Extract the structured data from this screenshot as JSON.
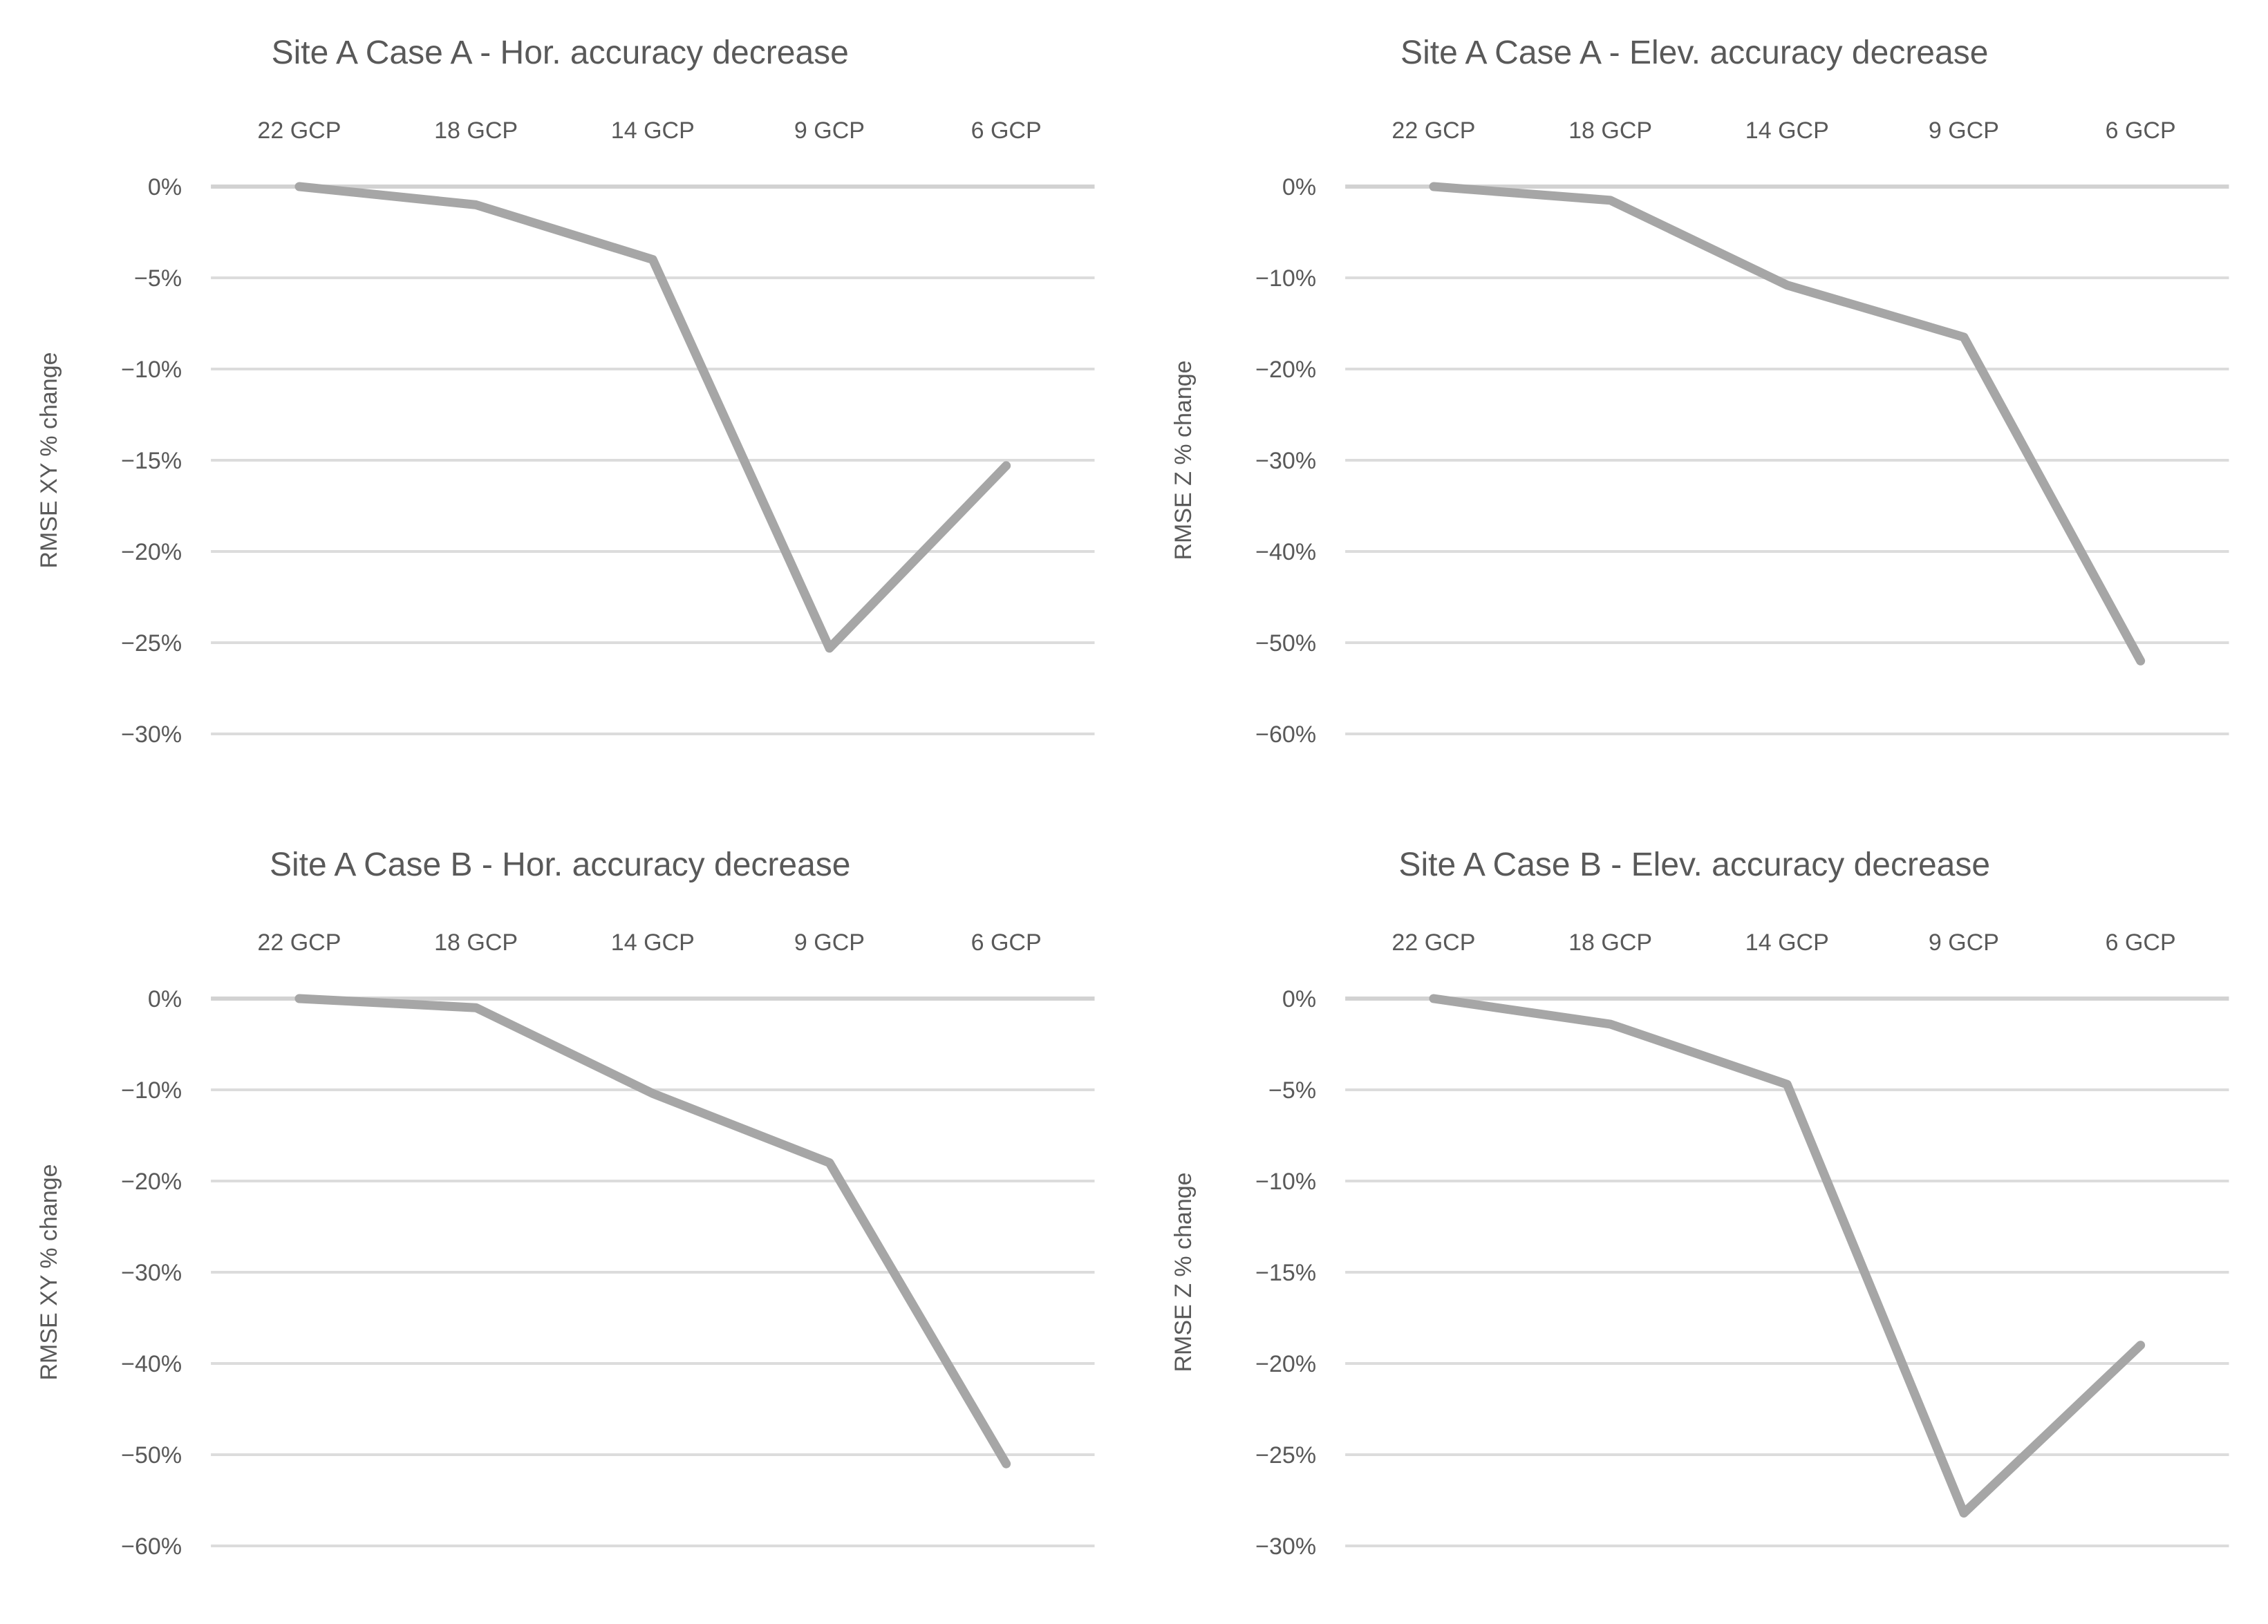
{
  "page": {
    "background": "#ffffff"
  },
  "style": {
    "line_color": "#a6a6a6",
    "gridline_color": "#dcdcdc",
    "axis_line_color": "#d2d2d2",
    "text_color": "#595959"
  },
  "chart_data": [
    {
      "type": "line",
      "title": "Site A Case A - Hor. accuracy decrease",
      "ylabel": "RMSE XY % change",
      "xlabel": "",
      "categories": [
        "22 GCP",
        "18 GCP",
        "14 GCP",
        "9 GCP",
        "6 GCP"
      ],
      "values": [
        0,
        -1,
        -4,
        -25.3,
        -15.3
      ],
      "ylim": [
        0,
        -30
      ],
      "ytick_labels": [
        "0%",
        "−5%",
        "−10%",
        "−15%",
        "−20%",
        "−25%",
        "−30%"
      ],
      "grid": true,
      "legend": "none",
      "markers": false
    },
    {
      "type": "line",
      "title": "Site A Case A - Elev. accuracy decrease",
      "ylabel": "RMSE Z % change",
      "xlabel": "",
      "categories": [
        "22 GCP",
        "18 GCP",
        "14 GCP",
        "9 GCP",
        "6 GCP"
      ],
      "values": [
        0,
        -1.5,
        -10.8,
        -16.5,
        -52
      ],
      "ylim": [
        0,
        -60
      ],
      "ytick_labels": [
        "0%",
        "−10%",
        "−20%",
        "−30%",
        "−40%",
        "−50%",
        "−60%"
      ],
      "grid": true,
      "legend": "none",
      "markers": false
    },
    {
      "type": "line",
      "title": "Site A Case B - Hor. accuracy decrease",
      "ylabel": "RMSE XY % change",
      "xlabel": "",
      "categories": [
        "22 GCP",
        "18 GCP",
        "14 GCP",
        "9 GCP",
        "6 GCP"
      ],
      "values": [
        0,
        -1,
        -10.4,
        -18,
        -51
      ],
      "ylim": [
        0,
        -60
      ],
      "ytick_labels": [
        "0%",
        "−10%",
        "−20%",
        "−30%",
        "−40%",
        "−50%",
        "−60%"
      ],
      "grid": true,
      "legend": "none",
      "markers": false
    },
    {
      "type": "line",
      "title": "Site A Case B - Elev. accuracy decrease",
      "ylabel": "RMSE Z % change",
      "xlabel": "",
      "categories": [
        "22 GCP",
        "18 GCP",
        "14 GCP",
        "9 GCP",
        "6 GCP"
      ],
      "values": [
        0,
        -1.4,
        -4.7,
        -28.2,
        -19
      ],
      "ylim": [
        0,
        -30
      ],
      "ytick_labels": [
        "0%",
        "−5%",
        "−10%",
        "−15%",
        "−20%",
        "−25%",
        "−30%"
      ],
      "grid": true,
      "legend": "none",
      "markers": false
    }
  ]
}
